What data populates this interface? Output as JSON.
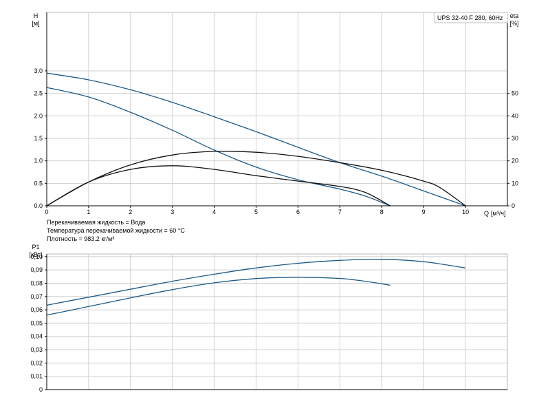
{
  "chart_data": [
    {
      "type": "line",
      "title": "UPS 32-40 F 280, 60Hz",
      "ylabel": "H",
      "yunit": "[м]",
      "y2label": "eta",
      "y2unit": "[%]",
      "xlabel": "Q",
      "xunit": "[м³/ч]",
      "xlim": [
        0,
        11
      ],
      "ylim": [
        0,
        4.3
      ],
      "y2lim": [
        0,
        86
      ],
      "xticks": [
        "0",
        "1",
        "2",
        "3",
        "4",
        "5",
        "6",
        "7",
        "8",
        "9",
        "10"
      ],
      "yticks": [
        "0.0",
        "0.5",
        "1.0",
        "1.5",
        "2.0",
        "2.5",
        "3.0"
      ],
      "y2ticks": [
        "0",
        "10",
        "20",
        "30",
        "40",
        "50"
      ],
      "grid": true,
      "series": [
        {
          "axis": "H",
          "color": "#1b5a8a",
          "x": [
            0,
            1,
            2,
            3,
            4,
            5,
            6,
            7,
            8,
            9,
            10
          ],
          "y": [
            2.95,
            2.8,
            2.58,
            2.3,
            1.98,
            1.65,
            1.3,
            0.96,
            0.66,
            0.33,
            0.0
          ]
        },
        {
          "axis": "H",
          "color": "#1b5a8a",
          "x": [
            0,
            1,
            2,
            3,
            4,
            5,
            6,
            7,
            7.6,
            8.2
          ],
          "y": [
            2.63,
            2.42,
            2.08,
            1.68,
            1.24,
            0.86,
            0.58,
            0.37,
            0.22,
            0.0
          ]
        },
        {
          "axis": "eta",
          "color": "#111111",
          "x": [
            0,
            1,
            2,
            3,
            4,
            5,
            6,
            7,
            8,
            9,
            9.4,
            10
          ],
          "y": [
            0,
            10.6,
            18.2,
            22.6,
            24.2,
            23.8,
            22,
            19.2,
            15.8,
            11.0,
            8.0,
            0
          ]
        },
        {
          "axis": "eta",
          "color": "#111111",
          "x": [
            0,
            1,
            2,
            3,
            4,
            5,
            6,
            7,
            7.6,
            8.2
          ],
          "y": [
            0,
            10.6,
            16.2,
            17.8,
            16.2,
            13.4,
            11.0,
            8.6,
            6.0,
            0
          ]
        }
      ]
    },
    {
      "type": "line",
      "ylabel": "P1",
      "yunit": "[кВт]",
      "xlim": [
        0,
        11
      ],
      "ylim": [
        0,
        0.102
      ],
      "yticks": [
        "0",
        "0,01",
        "0,02",
        "0,03",
        "0,04",
        "0,05",
        "0,06",
        "0,07",
        "0,08",
        "0,09",
        "0,10"
      ],
      "grid": true,
      "series": [
        {
          "color": "#1b5a8a",
          "x": [
            0,
            1,
            2,
            3,
            4,
            5,
            6,
            7,
            8,
            9,
            10
          ],
          "y": [
            0.0635,
            0.0695,
            0.0755,
            0.0815,
            0.0868,
            0.0915,
            0.095,
            0.0972,
            0.098,
            0.0962,
            0.0915
          ]
        },
        {
          "color": "#1b5a8a",
          "x": [
            0,
            1,
            2,
            3,
            4,
            5,
            6,
            7,
            7.6,
            8.2
          ],
          "y": [
            0.056,
            0.0625,
            0.069,
            0.0752,
            0.0803,
            0.0835,
            0.0845,
            0.0836,
            0.0815,
            0.0785
          ]
        }
      ]
    }
  ],
  "notes": [
    "Перекачиваемая жидкость = Вода",
    "Температура перекачиваемой жидкости = 60 °C",
    "Плотность = 983.2 кг/м³"
  ]
}
